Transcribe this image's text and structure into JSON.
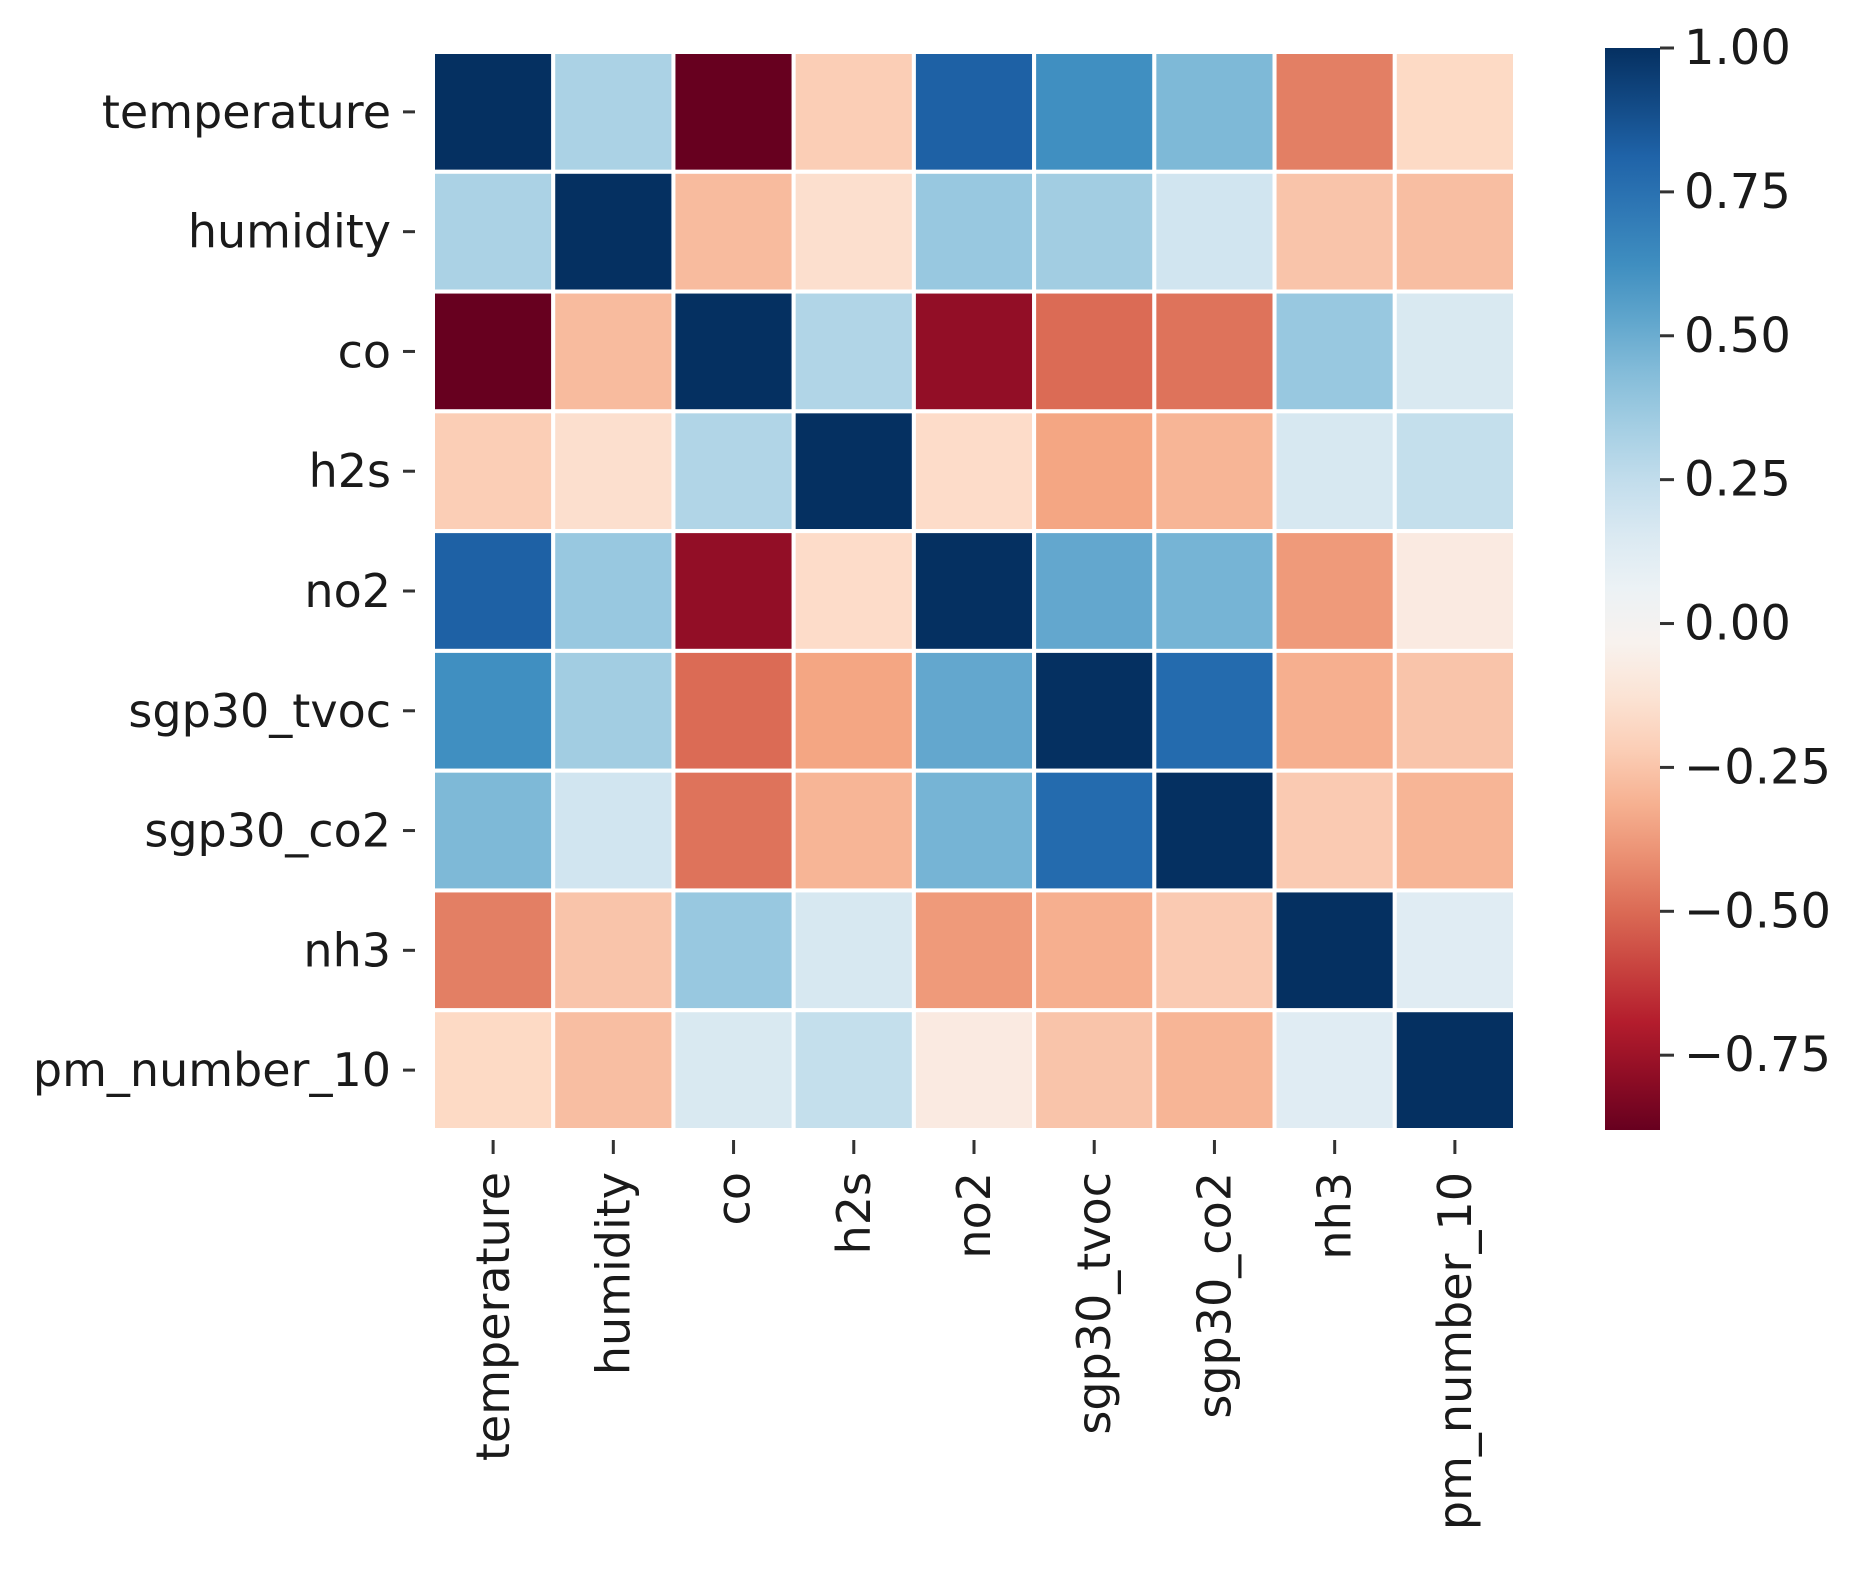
{
  "chart_data": {
    "type": "heatmap",
    "title": "",
    "xlabel": "",
    "ylabel": "",
    "categories": [
      "temperature",
      "humidity",
      "co",
      "h2s",
      "no2",
      "sgp30_tvoc",
      "sgp30_co2",
      "nh3",
      "pm_number_10"
    ],
    "matrix": [
      [
        1.0,
        0.32,
        -0.88,
        -0.22,
        0.82,
        0.62,
        0.45,
        -0.45,
        -0.18
      ],
      [
        0.32,
        1.0,
        -0.28,
        -0.15,
        0.38,
        0.35,
        0.2,
        -0.25,
        -0.27
      ],
      [
        -0.88,
        -0.28,
        1.0,
        0.3,
        -0.78,
        -0.5,
        -0.48,
        0.38,
        0.16
      ],
      [
        -0.22,
        -0.15,
        0.3,
        1.0,
        -0.17,
        -0.35,
        -0.3,
        0.17,
        0.24
      ],
      [
        0.82,
        0.38,
        -0.78,
        -0.17,
        1.0,
        0.52,
        0.47,
        -0.38,
        -0.08
      ],
      [
        0.62,
        0.35,
        -0.5,
        -0.35,
        0.52,
        1.0,
        0.78,
        -0.32,
        -0.25
      ],
      [
        0.45,
        0.2,
        -0.48,
        -0.3,
        0.47,
        0.78,
        1.0,
        -0.23,
        -0.3
      ],
      [
        -0.45,
        -0.25,
        0.38,
        0.17,
        -0.38,
        -0.32,
        -0.23,
        1.0,
        0.12
      ],
      [
        -0.18,
        -0.27,
        0.16,
        0.24,
        -0.08,
        -0.25,
        -0.3,
        0.12,
        1.0
      ]
    ],
    "colormap": "RdBu",
    "vmin": -0.88,
    "vmax": 1.0,
    "colorbar": {
      "ticks": [
        1.0,
        0.75,
        0.5,
        0.25,
        0.0,
        -0.25,
        -0.5,
        -0.75
      ],
      "tick_labels": [
        "1.00",
        "0.75",
        "0.50",
        "0.25",
        "0.00",
        "−0.25",
        "−0.50",
        "−0.75"
      ]
    },
    "grid": true,
    "colors": {
      "cell_border": "#ffffff",
      "low": "#67001f",
      "mid": "#f7f7f7",
      "high": "#053061"
    }
  }
}
